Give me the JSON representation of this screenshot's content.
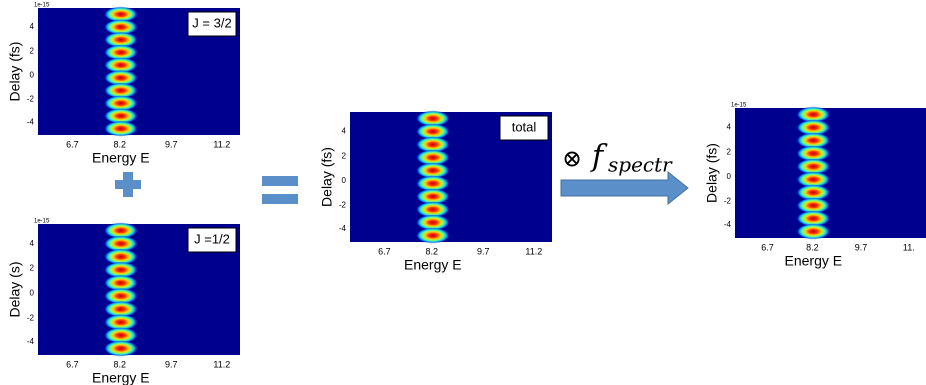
{
  "panels": [
    {
      "offset": "1e-15",
      "ylabel": "Delay (fs)",
      "xlabel": "Energy E",
      "box": "J = 3/2",
      "yticks": [
        "4",
        "2",
        "0",
        "-2",
        "-4"
      ],
      "xticks": [
        "6.7",
        "8.2",
        "9.7",
        "11.2"
      ]
    },
    {
      "offset": "1e-15",
      "ylabel": "Delay (s)",
      "xlabel": "Energy E",
      "box": "J =1/2",
      "yticks": [
        "4",
        "2",
        "0",
        "-2",
        "-4"
      ],
      "xticks": [
        "6.7",
        "8.2",
        "9.7",
        "11.2"
      ]
    },
    {
      "ylabel": "Delay (fs)",
      "xlabel": "Energy E",
      "box": "total",
      "yticks": [
        "4",
        "2",
        "0",
        "-2",
        "-4"
      ],
      "xticks": [
        "6.7",
        "8.2",
        "9.7",
        "11.2"
      ]
    },
    {
      "offset": "1e-15",
      "ylabel": "Delay (fs)",
      "xlabel": "Energy E",
      "yticks": [
        "4",
        "2",
        "0",
        "-2",
        "-4"
      ],
      "xticks": [
        "6.7",
        "8.2",
        "9.7",
        "11."
      ]
    }
  ],
  "operator": {
    "symbol": "⊗",
    "function": "f",
    "subscript": "spectr"
  }
}
